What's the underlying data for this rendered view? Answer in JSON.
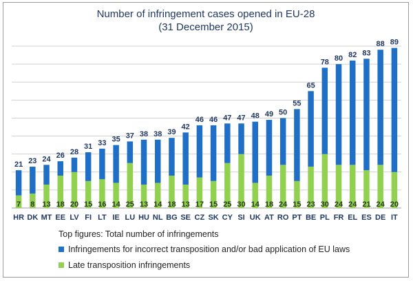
{
  "chart_data": {
    "type": "bar",
    "stacked": true,
    "title": "Number of infringement cases opened in EU-28",
    "subtitle": "(31 December 2015)",
    "categories": [
      "HR",
      "DK",
      "MT",
      "EE",
      "LV",
      "FI",
      "LT",
      "IE",
      "LU",
      "HU",
      "NL",
      "BG",
      "SE",
      "CZ",
      "SK",
      "CY",
      "SI",
      "UK",
      "AT",
      "RO",
      "PT",
      "BE",
      "PL",
      "FR",
      "EL",
      "ES",
      "DE",
      "IT"
    ],
    "totals": [
      21,
      23,
      24,
      26,
      28,
      31,
      33,
      35,
      37,
      38,
      38,
      39,
      42,
      46,
      46,
      47,
      47,
      48,
      49,
      50,
      55,
      65,
      78,
      80,
      82,
      83,
      88,
      89
    ],
    "series": [
      {
        "name": "Late transposition infringements",
        "color": "#92d050",
        "values": [
          7,
          8,
          13,
          18,
          20,
          15,
          16,
          14,
          25,
          13,
          14,
          18,
          13,
          17,
          15,
          25,
          30,
          14,
          18,
          24,
          15,
          23,
          30,
          24,
          24,
          21,
          24,
          20
        ]
      },
      {
        "name": "Infringements for incorrect transposition and/or bad application of EU laws",
        "color": "#1f6fc6",
        "values": [
          14,
          15,
          11,
          8,
          8,
          16,
          17,
          21,
          12,
          25,
          24,
          21,
          29,
          29,
          31,
          22,
          17,
          34,
          31,
          26,
          40,
          42,
          48,
          56,
          58,
          62,
          64,
          69
        ]
      }
    ],
    "ylim": [
      0,
      90
    ],
    "grid": true,
    "legend_note": "Top figures: Total number of infringements",
    "legend_position": "bottom-left"
  }
}
